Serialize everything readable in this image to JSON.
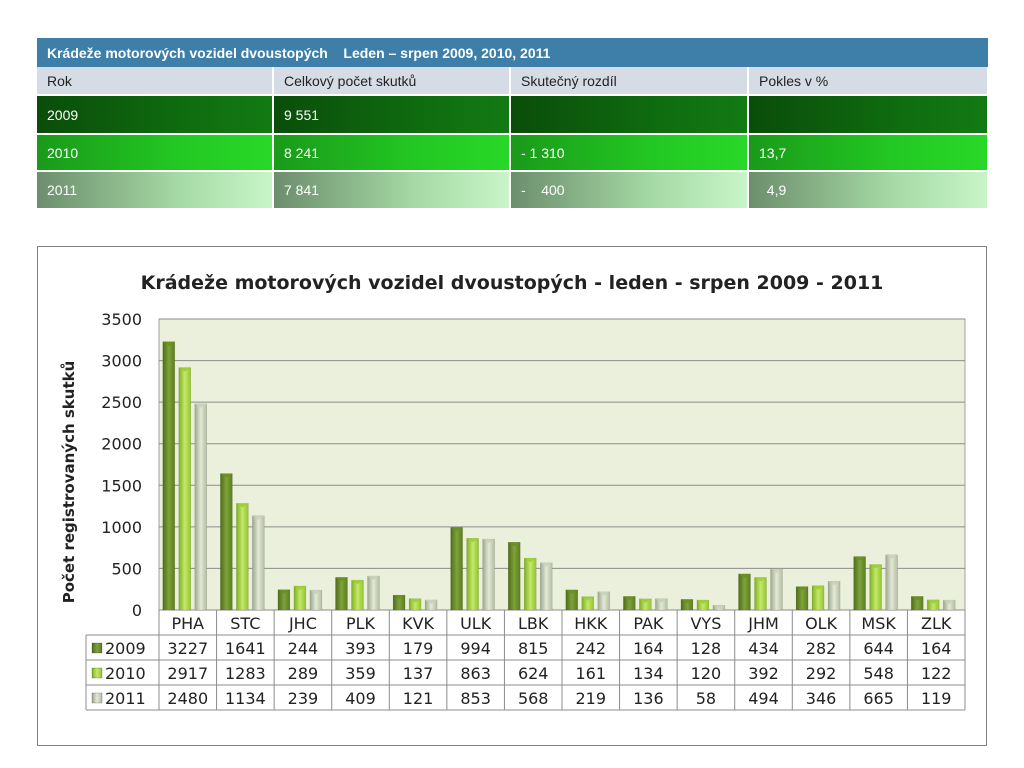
{
  "summary_table": {
    "title": "Krádeže motorových vozidel dvoustopých    Leden – srpen 2009, 2010, 2011",
    "headers": [
      "Rok",
      "Celkový počet skutků",
      "Skutečný rozdíl",
      "Pokles v %"
    ],
    "rows": [
      {
        "rok": "2009",
        "celkem": "9 551",
        "rozdil": "",
        "pokles": ""
      },
      {
        "rok": "2010",
        "celkem": "8 241",
        "rozdil": "- 1 310",
        "pokles": "13,7"
      },
      {
        "rok": "2011",
        "celkem": "7 841",
        "rozdil": "-    400",
        "pokles": "  4,9"
      }
    ]
  },
  "colors": {
    "plot_bg": "#ebf0dc",
    "series_2009": "#6b8e23",
    "series_2010": "#9acd32",
    "series_2011": "#c8d0b8"
  },
  "chart_data": {
    "type": "bar",
    "title": "Krádeže motorových vozidel dvoustopých - leden - srpen 2009 - 2011",
    "xlabel": "",
    "ylabel": "Počet registrovaných skutků",
    "ylim": [
      0,
      3500
    ],
    "yticks": [
      0,
      500,
      1000,
      1500,
      2000,
      2500,
      3000,
      3500
    ],
    "grid": true,
    "categories": [
      "PHA",
      "STC",
      "JHC",
      "PLK",
      "KVK",
      "ULK",
      "LBK",
      "HKK",
      "PAK",
      "VYS",
      "JHM",
      "OLK",
      "MSK",
      "ZLK"
    ],
    "series": [
      {
        "name": "2009",
        "values": [
          3227,
          1641,
          244,
          393,
          179,
          994,
          815,
          242,
          164,
          128,
          434,
          282,
          644,
          164
        ]
      },
      {
        "name": "2010",
        "values": [
          2917,
          1283,
          289,
          359,
          137,
          863,
          624,
          161,
          134,
          120,
          392,
          292,
          548,
          122
        ]
      },
      {
        "name": "2011",
        "values": [
          2480,
          1134,
          239,
          409,
          121,
          853,
          568,
          219,
          136,
          58,
          494,
          346,
          665,
          119
        ]
      }
    ]
  }
}
